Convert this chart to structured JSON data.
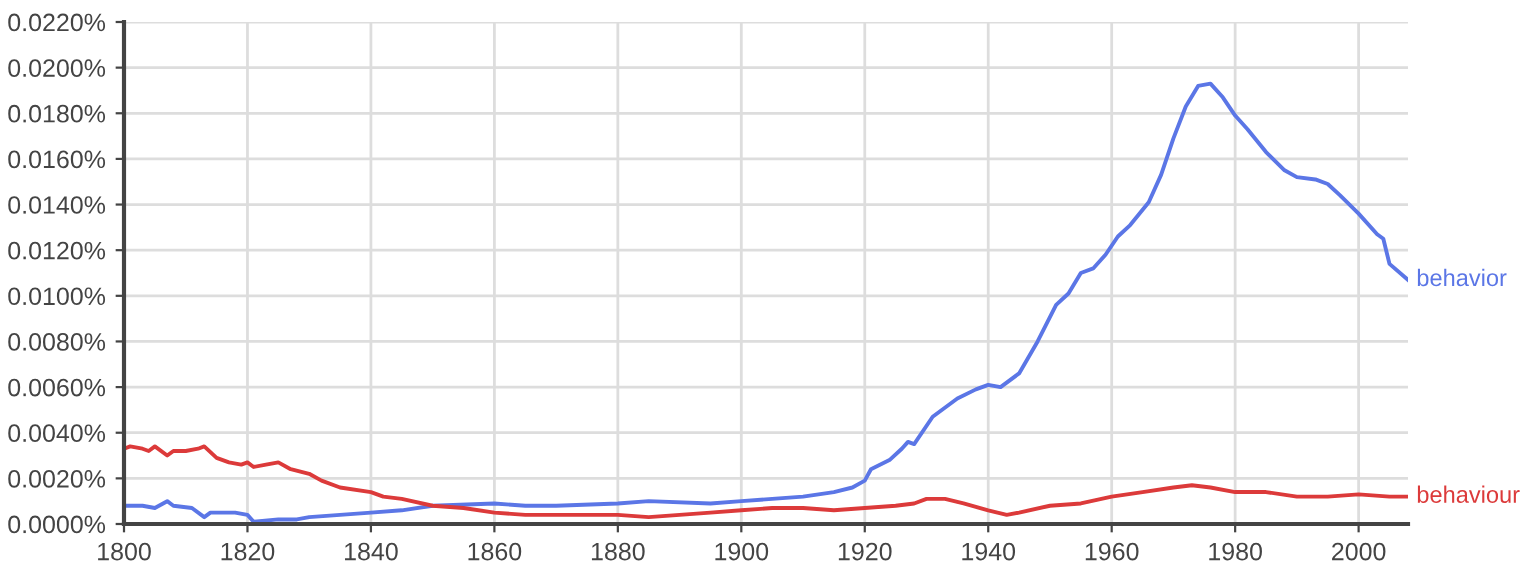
{
  "chart_data": {
    "type": "line",
    "xlim": [
      1800,
      2008
    ],
    "ylim": [
      0,
      0.022
    ],
    "xticks": [
      1800,
      1820,
      1840,
      1860,
      1880,
      1900,
      1920,
      1940,
      1960,
      1980,
      2000
    ],
    "yticks": [
      {
        "value": 0,
        "label": "0.0000%"
      },
      {
        "value": 0.002,
        "label": "0.0020%"
      },
      {
        "value": 0.004,
        "label": "0.0040%"
      },
      {
        "value": 0.006,
        "label": "0.0060%"
      },
      {
        "value": 0.008,
        "label": "0.0080%"
      },
      {
        "value": 0.01,
        "label": "0.0100%"
      },
      {
        "value": 0.012,
        "label": "0.0120%"
      },
      {
        "value": 0.014,
        "label": "0.0140%"
      },
      {
        "value": 0.016,
        "label": "0.0160%"
      },
      {
        "value": 0.018,
        "label": "0.0180%"
      },
      {
        "value": 0.02,
        "label": "0.0200%"
      },
      {
        "value": 0.022,
        "label": "0.0220%"
      }
    ],
    "grid": true,
    "legend": false,
    "marker": "none",
    "line_style": "solid",
    "series": [
      {
        "name": "behavior",
        "color": "#5b76e6",
        "x": [
          1800,
          1803,
          1805,
          1807,
          1808,
          1811,
          1813,
          1814,
          1818,
          1820,
          1821,
          1825,
          1828,
          1830,
          1835,
          1840,
          1845,
          1850,
          1860,
          1865,
          1870,
          1880,
          1885,
          1895,
          1900,
          1905,
          1910,
          1915,
          1918,
          1920,
          1921,
          1924,
          1926,
          1927,
          1928,
          1931,
          1935,
          1938,
          1940,
          1942,
          1945,
          1948,
          1951,
          1953,
          1955,
          1957,
          1959,
          1961,
          1963,
          1966,
          1968,
          1970,
          1972,
          1974,
          1976,
          1978,
          1980,
          1982,
          1985,
          1988,
          1990,
          1993,
          1995,
          1997,
          2000,
          2003,
          2004,
          2005,
          2008
        ],
        "values": [
          0.0008,
          0.0008,
          0.0007,
          0.001,
          0.0008,
          0.0007,
          0.0003,
          0.0005,
          0.0005,
          0.0004,
          0.0001,
          0.0002,
          0.0002,
          0.0003,
          0.0004,
          0.0005,
          0.0006,
          0.0008,
          0.0009,
          0.0008,
          0.0008,
          0.0009,
          0.001,
          0.0009,
          0.001,
          0.0011,
          0.0012,
          0.0014,
          0.0016,
          0.0019,
          0.0024,
          0.0028,
          0.0033,
          0.0036,
          0.0035,
          0.0047,
          0.0055,
          0.0059,
          0.0061,
          0.006,
          0.0066,
          0.008,
          0.0096,
          0.0101,
          0.011,
          0.0112,
          0.0118,
          0.0126,
          0.0131,
          0.0141,
          0.0153,
          0.0169,
          0.0183,
          0.0192,
          0.0193,
          0.0187,
          0.0179,
          0.0173,
          0.0163,
          0.0155,
          0.0152,
          0.0151,
          0.0149,
          0.0144,
          0.0136,
          0.0127,
          0.0125,
          0.0114,
          0.0107
        ]
      },
      {
        "name": "behaviour",
        "color": "#dc3a3a",
        "x": [
          1800,
          1801,
          1803,
          1804,
          1805,
          1807,
          1808,
          1810,
          1812,
          1813,
          1815,
          1817,
          1819,
          1820,
          1821,
          1823,
          1825,
          1827,
          1830,
          1832,
          1835,
          1840,
          1842,
          1845,
          1850,
          1855,
          1860,
          1865,
          1870,
          1880,
          1885,
          1890,
          1895,
          1900,
          1905,
          1910,
          1915,
          1920,
          1925,
          1928,
          1930,
          1933,
          1936,
          1940,
          1943,
          1945,
          1950,
          1955,
          1960,
          1965,
          1970,
          1973,
          1976,
          1980,
          1985,
          1990,
          1995,
          2000,
          2005,
          2008
        ],
        "values": [
          0.0033,
          0.0034,
          0.0033,
          0.0032,
          0.0034,
          0.003,
          0.0032,
          0.0032,
          0.0033,
          0.0034,
          0.0029,
          0.0027,
          0.0026,
          0.0027,
          0.0025,
          0.0026,
          0.0027,
          0.0024,
          0.0022,
          0.0019,
          0.0016,
          0.0014,
          0.0012,
          0.0011,
          0.0008,
          0.0007,
          0.0005,
          0.0004,
          0.0004,
          0.0004,
          0.0003,
          0.0004,
          0.0005,
          0.0006,
          0.0007,
          0.0007,
          0.0006,
          0.0007,
          0.0008,
          0.0009,
          0.0011,
          0.0011,
          0.0009,
          0.0006,
          0.0004,
          0.0005,
          0.0008,
          0.0009,
          0.0012,
          0.0014,
          0.0016,
          0.0017,
          0.0016,
          0.0014,
          0.0014,
          0.0012,
          0.0012,
          0.0013,
          0.0012,
          0.0012
        ]
      }
    ]
  }
}
